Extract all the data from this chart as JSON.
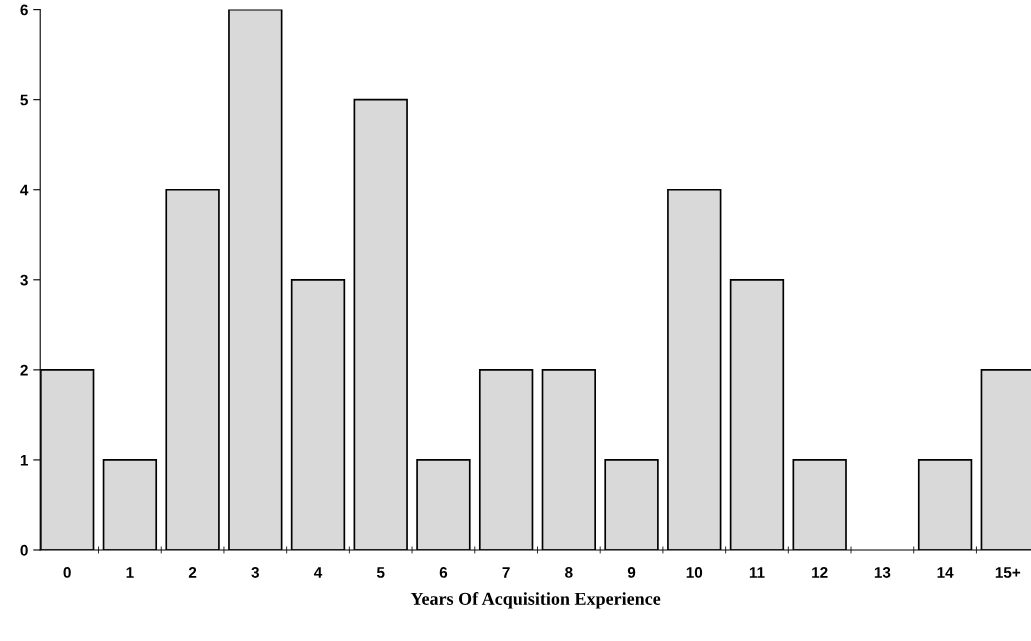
{
  "chart_data": {
    "type": "bar",
    "xlabel": "Years Of Acquisition Experience",
    "categories": [
      "0",
      "1",
      "2",
      "3",
      "4",
      "5",
      "6",
      "7",
      "8",
      "9",
      "10",
      "11",
      "12",
      "13",
      "14",
      "15+"
    ],
    "values": [
      2,
      1,
      4,
      6,
      3,
      5,
      1,
      2,
      2,
      1,
      4,
      3,
      1,
      0,
      1,
      2
    ],
    "color": "#d9d9d9",
    "ylim": [
      0,
      6
    ],
    "yticks": [
      0,
      1,
      2,
      3,
      4,
      5,
      6
    ],
    "grid": false,
    "legend": false
  }
}
